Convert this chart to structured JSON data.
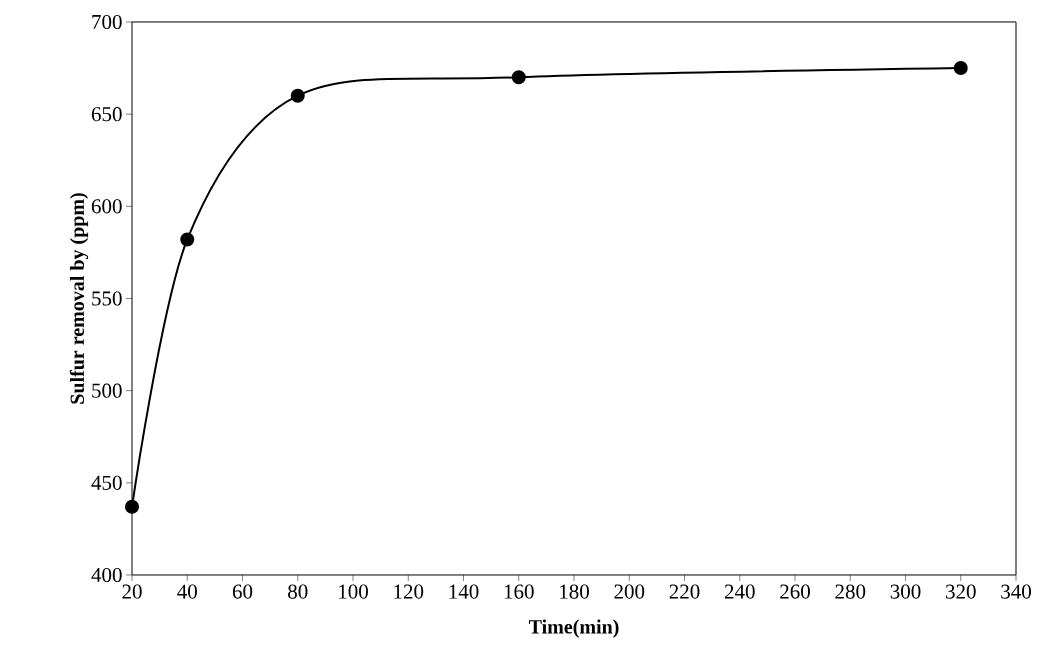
{
  "chart_data": {
    "type": "line",
    "xlabel": "Time(min)",
    "ylabel": "Sulfur removal by (ppm)",
    "x": [
      20,
      40,
      80,
      160,
      320
    ],
    "series": [
      {
        "color": "#000000",
        "values": [
          437,
          582,
          660,
          670,
          675
        ]
      }
    ],
    "xlim": [
      20,
      340
    ],
    "ylim": [
      400,
      700
    ],
    "xticks": [
      20,
      40,
      60,
      80,
      100,
      120,
      140,
      160,
      180,
      200,
      220,
      240,
      260,
      280,
      300,
      320,
      340
    ],
    "yticks": [
      400,
      450,
      500,
      550,
      600,
      650,
      700
    ],
    "grid": false,
    "marker": "circle",
    "line_style": "solid"
  }
}
